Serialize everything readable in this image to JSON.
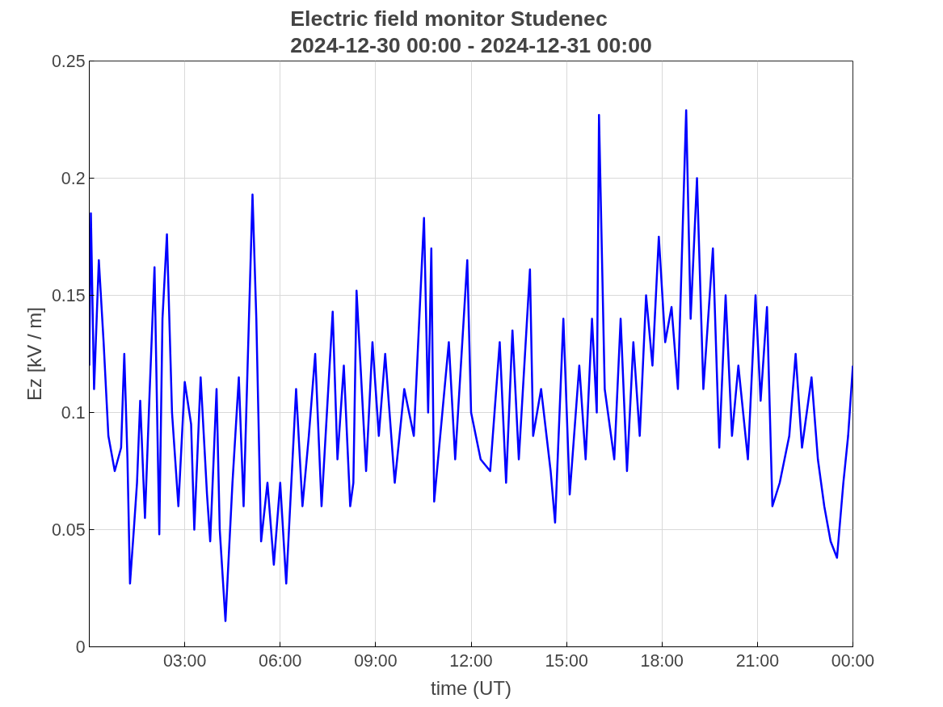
{
  "chart_data": {
    "type": "line",
    "title": "Electric field monitor Studenec\n2024-12-30 00:00 - 2024-12-31 00:00",
    "xlabel": "time (UT)",
    "ylabel": "Ez [kV / m]",
    "xlim": [
      0,
      24
    ],
    "ylim": [
      0,
      0.25
    ],
    "xticks": [
      {
        "value": 3,
        "label": "03:00"
      },
      {
        "value": 6,
        "label": "06:00"
      },
      {
        "value": 9,
        "label": "09:00"
      },
      {
        "value": 12,
        "label": "12:00"
      },
      {
        "value": 15,
        "label": "15:00"
      },
      {
        "value": 18,
        "label": "18:00"
      },
      {
        "value": 21,
        "label": "21:00"
      },
      {
        "value": 24,
        "label": "00:00"
      }
    ],
    "yticks": [
      0,
      0.05,
      0.1,
      0.15,
      0.2,
      0.25
    ],
    "grid": true,
    "line_style": "solid",
    "marker": "none",
    "series": [
      {
        "color": "#0000ff",
        "x": [
          0.0,
          0.05,
          0.15,
          0.3,
          0.45,
          0.6,
          0.8,
          1.0,
          1.1,
          1.2,
          1.28,
          1.4,
          1.5,
          1.6,
          1.75,
          1.9,
          2.05,
          2.2,
          2.3,
          2.44,
          2.6,
          2.8,
          3.0,
          3.2,
          3.3,
          3.5,
          3.7,
          3.8,
          4.0,
          4.1,
          4.28,
          4.5,
          4.7,
          4.85,
          5.13,
          5.25,
          5.4,
          5.6,
          5.8,
          6.0,
          6.19,
          6.5,
          6.7,
          6.9,
          7.1,
          7.3,
          7.65,
          7.8,
          8.0,
          8.2,
          8.3,
          8.4,
          8.7,
          8.9,
          9.1,
          9.3,
          9.6,
          9.9,
          10.2,
          10.52,
          10.65,
          10.75,
          10.84,
          11.3,
          11.5,
          11.88,
          12.0,
          12.3,
          12.6,
          12.9,
          13.1,
          13.3,
          13.5,
          13.85,
          13.95,
          14.2,
          14.5,
          14.64,
          14.9,
          15.1,
          15.4,
          15.6,
          15.8,
          15.95,
          16.02,
          16.2,
          16.5,
          16.7,
          16.9,
          17.1,
          17.3,
          17.5,
          17.7,
          17.9,
          18.1,
          18.3,
          18.5,
          18.76,
          18.9,
          19.1,
          19.3,
          19.6,
          19.8,
          20.0,
          20.2,
          20.4,
          20.7,
          20.94,
          21.1,
          21.3,
          21.47,
          21.7,
          22.0,
          22.2,
          22.4,
          22.7,
          22.9,
          23.1,
          23.3,
          23.5,
          23.7,
          23.85,
          24.0
        ],
        "values": [
          0.12,
          0.185,
          0.11,
          0.165,
          0.13,
          0.09,
          0.075,
          0.085,
          0.125,
          0.08,
          0.027,
          0.05,
          0.07,
          0.105,
          0.055,
          0.11,
          0.162,
          0.048,
          0.14,
          0.176,
          0.1,
          0.06,
          0.113,
          0.095,
          0.05,
          0.115,
          0.065,
          0.045,
          0.11,
          0.05,
          0.011,
          0.07,
          0.115,
          0.06,
          0.193,
          0.14,
          0.045,
          0.07,
          0.035,
          0.07,
          0.027,
          0.11,
          0.06,
          0.09,
          0.125,
          0.06,
          0.143,
          0.08,
          0.12,
          0.06,
          0.07,
          0.152,
          0.075,
          0.13,
          0.09,
          0.125,
          0.07,
          0.11,
          0.09,
          0.183,
          0.1,
          0.17,
          0.062,
          0.13,
          0.08,
          0.165,
          0.1,
          0.08,
          0.075,
          0.13,
          0.07,
          0.135,
          0.08,
          0.161,
          0.09,
          0.11,
          0.075,
          0.053,
          0.14,
          0.065,
          0.12,
          0.08,
          0.14,
          0.1,
          0.227,
          0.11,
          0.08,
          0.14,
          0.075,
          0.13,
          0.09,
          0.15,
          0.12,
          0.175,
          0.13,
          0.145,
          0.11,
          0.229,
          0.14,
          0.2,
          0.11,
          0.17,
          0.085,
          0.15,
          0.09,
          0.12,
          0.08,
          0.15,
          0.105,
          0.145,
          0.06,
          0.07,
          0.09,
          0.125,
          0.085,
          0.115,
          0.08,
          0.06,
          0.045,
          0.038,
          0.07,
          0.09,
          0.12
        ]
      }
    ]
  }
}
